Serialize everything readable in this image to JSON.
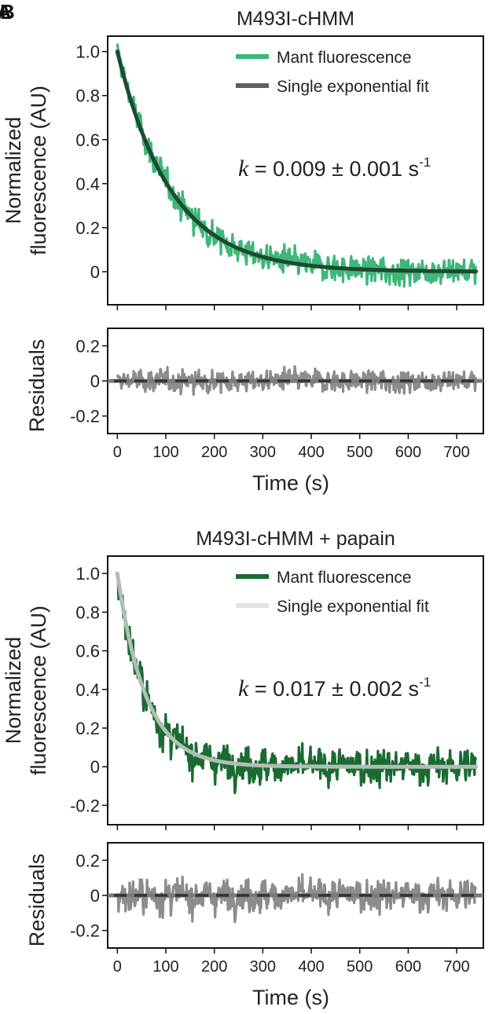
{
  "panel_labels": [
    "A",
    "B"
  ],
  "chart_data": [
    {
      "type": "line",
      "title": "M493I-cHMM",
      "xlabel": "",
      "ylabel": "Normalized fluorescence (AU)",
      "xlim": [
        -20,
        755
      ],
      "ylim": [
        -0.15,
        1.07
      ],
      "yticks": [
        0,
        0.2,
        0.4,
        0.6,
        0.8,
        1.0
      ],
      "ytick_labels": [
        "0",
        "0.2",
        "0.4",
        "0.6",
        "0.8",
        "1.0"
      ],
      "annotation": {
        "k_symbol": "k",
        "text": " = 0.009 ± 0.001 s",
        "superscript": "-1"
      },
      "legend_position": "top-right",
      "series": [
        {
          "name": "Mant fluorescence",
          "color": "#3fb67a",
          "style": "noisy-trace",
          "model": {
            "amplitude": 1.0,
            "rate": 0.009,
            "offset": 0.0
          },
          "noise": 0.05,
          "t_max": 740
        },
        {
          "name": "Single exponential fit",
          "color": "#1d4a30",
          "legend_color": "#5f5f5f",
          "style": "fit",
          "x": [
            0,
            50,
            100,
            150,
            200,
            250,
            300,
            400,
            500,
            600,
            740
          ],
          "y": [
            1.0,
            0.638,
            0.407,
            0.259,
            0.165,
            0.105,
            0.067,
            0.027,
            0.011,
            0.005,
            0.001
          ]
        }
      ]
    },
    {
      "type": "line",
      "title": "",
      "xlabel": "Time (s)",
      "ylabel": "Residuals",
      "xlim": [
        -20,
        755
      ],
      "ylim": [
        -0.3,
        0.3
      ],
      "xticks": [
        0,
        100,
        200,
        300,
        400,
        500,
        600,
        700
      ],
      "xtick_labels": [
        "0",
        "100",
        "200",
        "300",
        "400",
        "500",
        "600",
        "700"
      ],
      "yticks": [
        -0.2,
        0,
        0.2
      ],
      "ytick_labels": [
        "-0.2",
        "0",
        "0.2"
      ],
      "series": [
        {
          "name": "",
          "color": "#8c8c8c",
          "style": "residual-trace",
          "noise": 0.05,
          "t_max": 740
        },
        {
          "name": "",
          "color": "#333333",
          "style": "zero-dashed",
          "x": [
            -20,
            755
          ],
          "y": [
            0,
            0
          ]
        }
      ]
    },
    {
      "type": "line",
      "title": "M493I-cHMM + papain",
      "xlabel": "",
      "ylabel": "Normalized fluorescence (AU)",
      "xlim": [
        -20,
        755
      ],
      "ylim": [
        -0.3,
        1.09
      ],
      "yticks": [
        -0.2,
        0,
        0.2,
        0.4,
        0.6,
        0.8,
        1.0
      ],
      "ytick_labels": [
        "-0.2",
        "0",
        "0.2",
        "0.4",
        "0.6",
        "0.8",
        "1.0"
      ],
      "annotation": {
        "k_symbol": "k",
        "text": " = 0.017 ± 0.002 s",
        "superscript": "-1"
      },
      "legend_position": "top-right",
      "series": [
        {
          "name": "Mant fluorescence",
          "color": "#1a6b32",
          "style": "noisy-trace",
          "model": {
            "amplitude": 1.0,
            "rate": 0.017,
            "offset": 0.0
          },
          "noise": 0.075,
          "t_max": 740
        },
        {
          "name": "Single exponential fit",
          "color": "#b2bdb5",
          "legend_color": "#e3e3e3",
          "style": "fit",
          "x": [
            0,
            25,
            50,
            75,
            100,
            150,
            200,
            300,
            400,
            500,
            740
          ],
          "y": [
            1.0,
            0.654,
            0.427,
            0.279,
            0.183,
            0.078,
            0.033,
            0.006,
            0.001,
            0.0,
            0.0
          ]
        }
      ]
    },
    {
      "type": "line",
      "title": "",
      "xlabel": "Time (s)",
      "ylabel": "Residuals",
      "xlim": [
        -20,
        755
      ],
      "ylim": [
        -0.3,
        0.3
      ],
      "xticks": [
        0,
        100,
        200,
        300,
        400,
        500,
        600,
        700
      ],
      "xtick_labels": [
        "0",
        "100",
        "200",
        "300",
        "400",
        "500",
        "600",
        "700"
      ],
      "yticks": [
        -0.2,
        0,
        0.2
      ],
      "ytick_labels": [
        "-0.2",
        "0",
        "0.2"
      ],
      "series": [
        {
          "name": "",
          "color": "#8c8c8c",
          "style": "residual-trace",
          "noise": 0.075,
          "t_max": 740
        },
        {
          "name": "",
          "color": "#333333",
          "style": "zero-dashed",
          "x": [
            -20,
            755
          ],
          "y": [
            0,
            0
          ]
        }
      ]
    }
  ]
}
